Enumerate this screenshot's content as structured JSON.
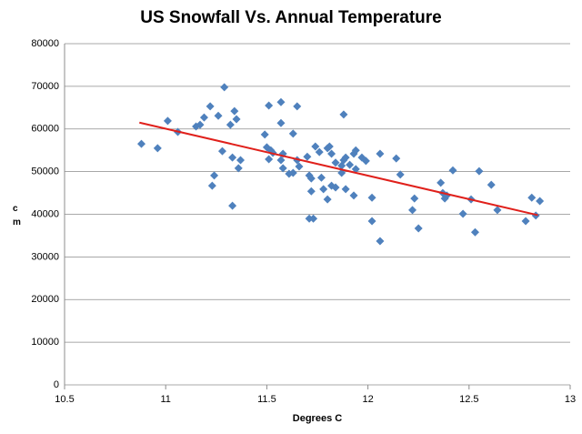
{
  "chart_data": {
    "type": "scatter",
    "title": "US Snowfall Vs. Annual Temperature",
    "x_label": "Degrees C",
    "y_label": "cm",
    "xlim": [
      10.5,
      13
    ],
    "xticks": [
      10.5,
      11,
      11.5,
      12,
      12.5,
      13
    ],
    "ylim": [
      0,
      80000
    ],
    "yticks": [
      0,
      10000,
      20000,
      30000,
      40000,
      50000,
      60000,
      70000,
      80000
    ],
    "grid": true,
    "color": "#4f81bd",
    "x": [
      10.88,
      10.96,
      11.01,
      11.06,
      11.15,
      11.17,
      11.19,
      11.22,
      11.24,
      11.23,
      11.26,
      11.29,
      11.28,
      11.32,
      11.34,
      11.35,
      11.33,
      11.33,
      11.36,
      11.37,
      11.49,
      11.51,
      11.5,
      11.52,
      11.53,
      11.51,
      11.57,
      11.57,
      11.58,
      11.57,
      11.58,
      11.61,
      11.63,
      11.63,
      11.65,
      11.65,
      11.66,
      11.7,
      11.71,
      11.72,
      11.72,
      11.71,
      11.73,
      11.74,
      11.76,
      11.77,
      11.78,
      11.8,
      11.8,
      11.81,
      11.82,
      11.82,
      11.84,
      11.84,
      11.87,
      11.87,
      11.88,
      11.88,
      11.89,
      11.89,
      11.91,
      11.93,
      11.94,
      11.93,
      11.94,
      11.97,
      11.99,
      12.02,
      12.02,
      12.06,
      12.06,
      12.14,
      12.16,
      12.22,
      12.23,
      12.25,
      12.36,
      12.37,
      12.38,
      12.39,
      12.42,
      12.47,
      12.51,
      12.53,
      12.55,
      12.61,
      12.64,
      12.78,
      12.81,
      12.83,
      12.85
    ],
    "values": [
      56500,
      55500,
      61900,
      59300,
      60600,
      61000,
      62700,
      65300,
      49100,
      46700,
      63100,
      69800,
      54800,
      61000,
      64200,
      62300,
      53300,
      42000,
      50800,
      52700,
      58700,
      65500,
      55700,
      55000,
      54400,
      52900,
      61400,
      66300,
      54200,
      52700,
      50800,
      49500,
      49700,
      58900,
      65300,
      52700,
      51200,
      53500,
      49100,
      48400,
      45400,
      39000,
      39000,
      55900,
      54600,
      48600,
      45900,
      43500,
      55500,
      55900,
      54200,
      46700,
      46300,
      52100,
      49700,
      51400,
      63400,
      52700,
      53300,
      45900,
      51600,
      54200,
      55000,
      44400,
      50600,
      53300,
      52500,
      38400,
      43900,
      54200,
      33700,
      53100,
      49300,
      41000,
      43700,
      36700,
      47400,
      45000,
      43700,
      44400,
      50300,
      40100,
      43500,
      35800,
      50100,
      46900,
      41000,
      38400,
      43900,
      39700,
      43100
    ],
    "trendline": {
      "x": [
        10.87,
        12.84
      ],
      "y": [
        61500,
        39800
      ],
      "color": "#e0201b"
    }
  }
}
